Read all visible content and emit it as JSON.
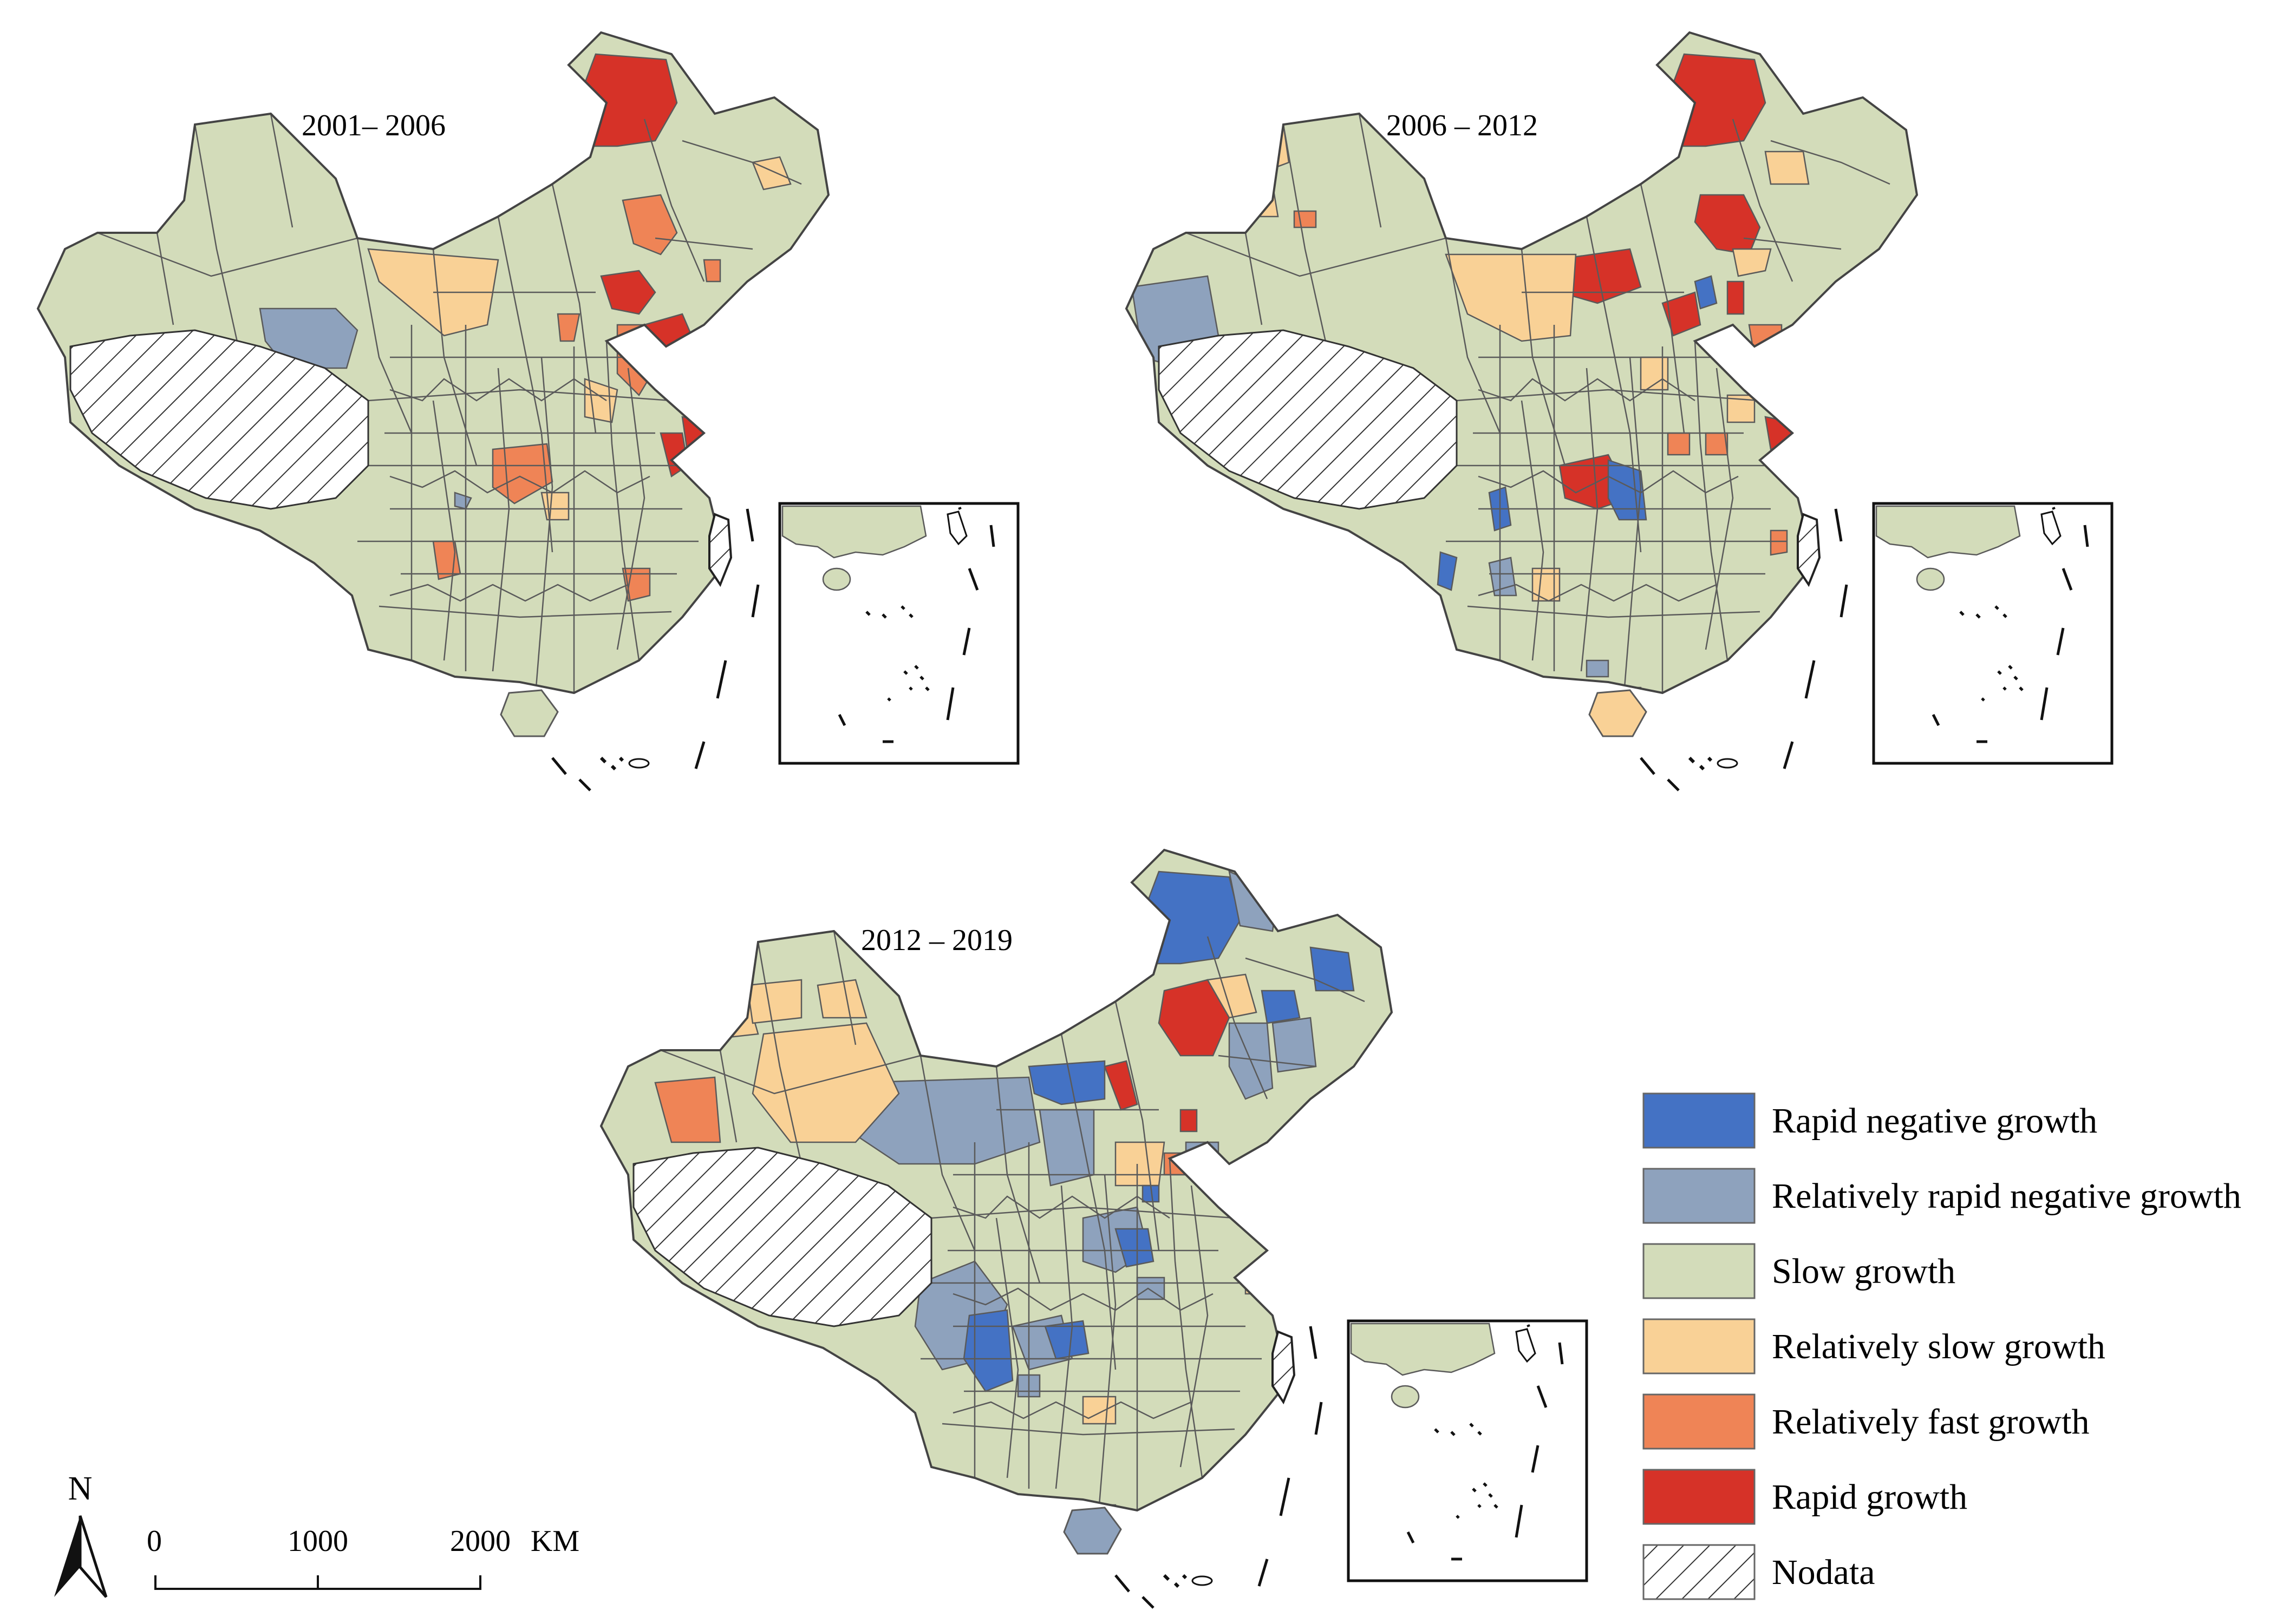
{
  "maps": [
    {
      "title": "2001– 2006"
    },
    {
      "title": "2006 – 2012"
    },
    {
      "title": "2012 – 2019"
    }
  ],
  "legend": {
    "items": [
      {
        "label": "Rapid negative growth",
        "color": "#4472c4"
      },
      {
        "label": "Relatively rapid negative growth",
        "color": "#8ea2bd"
      },
      {
        "label": "Slow growth",
        "color": "#d3dcba"
      },
      {
        "label": "Relatively slow growth",
        "color": "#f9d196"
      },
      {
        "label": "Relatively fast growth",
        "color": "#ef8456"
      },
      {
        "label": "Rapid growth",
        "color": "#d63228"
      },
      {
        "label": "Nodata",
        "color": "hatch"
      }
    ]
  },
  "north_arrow": {
    "label": "N"
  },
  "scale_bar": {
    "ticks": [
      "0",
      "1000",
      "2000"
    ],
    "unit": "KM"
  },
  "colors": {
    "border": "#5a5a5a",
    "base": "#d3dcba"
  }
}
